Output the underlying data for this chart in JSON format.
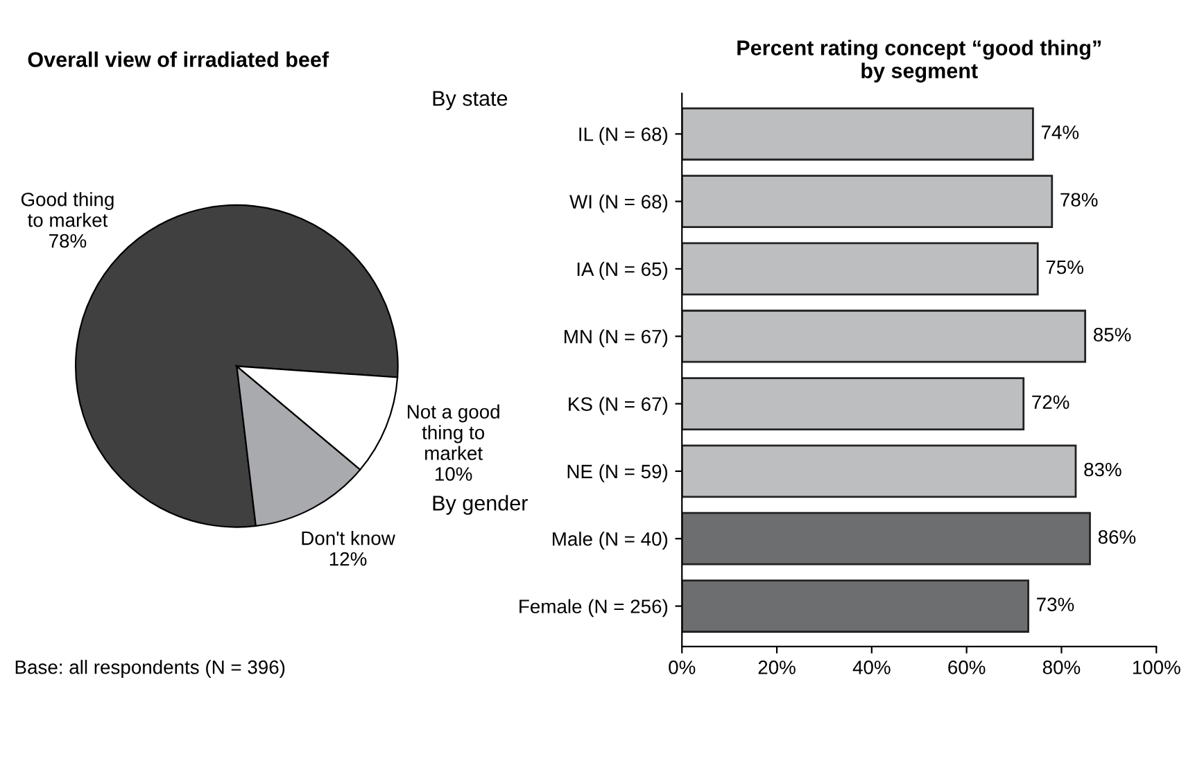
{
  "chart_data": [
    {
      "type": "pie",
      "title": "Overall view of irradiated beef",
      "categories": [
        "Good thing\nto market\n78%",
        "Don't know\n12%",
        "Not a good\nthing to\nmarket\n10%"
      ],
      "values": [
        78,
        12,
        10
      ],
      "colors": [
        "#404040",
        "#a9aaad",
        "#ffffff"
      ],
      "annotations": [
        "Base: all respondents (N = 396)"
      ]
    },
    {
      "type": "bar",
      "orientation": "horizontal",
      "title": "Percent rating concept “good thing”\nby segment",
      "categories": [
        "IL (N = 68)",
        "WI (N = 68)",
        "IA (N = 65)",
        "MN (N = 67)",
        "KS (N = 67)",
        "NE (N = 59)",
        "Male (N = 40)",
        "Female (N = 256)"
      ],
      "values": [
        74,
        78,
        75,
        85,
        72,
        83,
        86,
        73
      ],
      "colors": [
        "#bdbec0",
        "#bdbec0",
        "#bdbec0",
        "#bdbec0",
        "#bdbec0",
        "#bdbec0",
        "#6d6e70",
        "#6d6e70"
      ],
      "value_labels": [
        "74%",
        "78%",
        "75%",
        "85%",
        "72%",
        "83%",
        "86%",
        "73%"
      ],
      "xlim": [
        0,
        100
      ],
      "xticks": [
        {
          "value": 0,
          "label": "0%"
        },
        {
          "value": 20,
          "label": "20%"
        },
        {
          "value": 40,
          "label": "40%"
        },
        {
          "value": 60,
          "label": "60%"
        },
        {
          "value": 80,
          "label": "80%"
        },
        {
          "value": 100,
          "label": "100%"
        }
      ],
      "annotations": [
        "By state",
        "By gender"
      ],
      "grid": false,
      "legend": false
    }
  ]
}
